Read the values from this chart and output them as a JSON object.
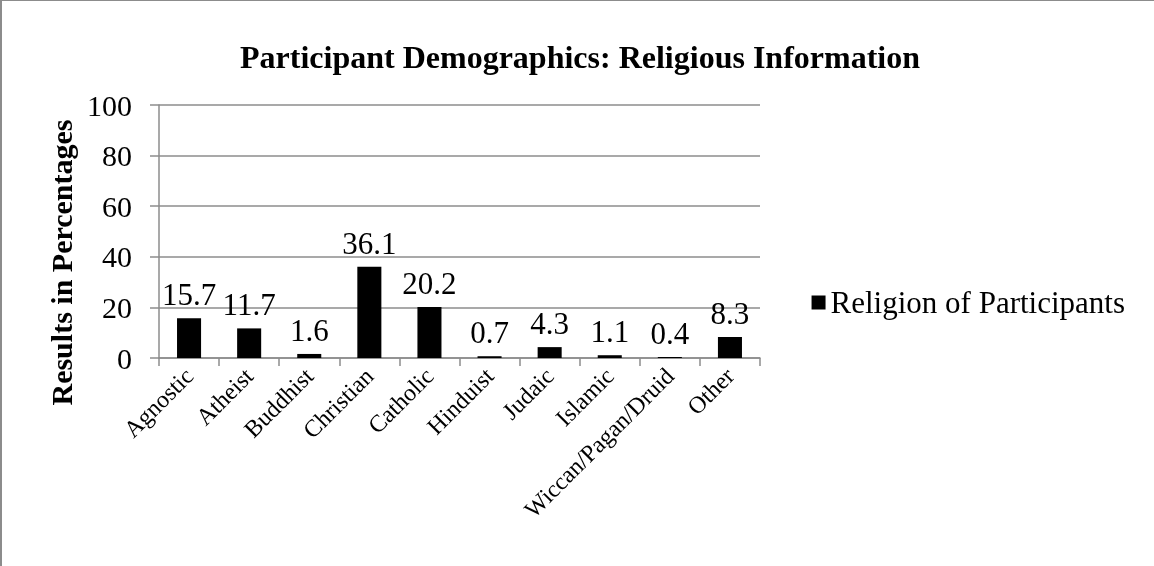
{
  "chart_data": {
    "type": "bar",
    "title": "Participant Demographics: Religious Information",
    "ylabel": "Results in Percentages",
    "categories": [
      "Agnostic",
      "Atheist",
      "Buddhist",
      "Christian",
      "Catholic",
      "Hinduist",
      "Judaic",
      "Islamic",
      "Wiccan/Pagan/Druid",
      "Other"
    ],
    "series": [
      {
        "name": "Religion of Participants",
        "color": "#000000",
        "values": [
          15.7,
          11.7,
          1.6,
          36.1,
          20.2,
          0.7,
          4.3,
          1.1,
          0.4,
          8.3
        ]
      }
    ],
    "ylim": [
      0,
      100
    ],
    "yticks": [
      0,
      20,
      40,
      60,
      80,
      100
    ],
    "grid": "y",
    "legend": "right",
    "data_labels": true
  }
}
